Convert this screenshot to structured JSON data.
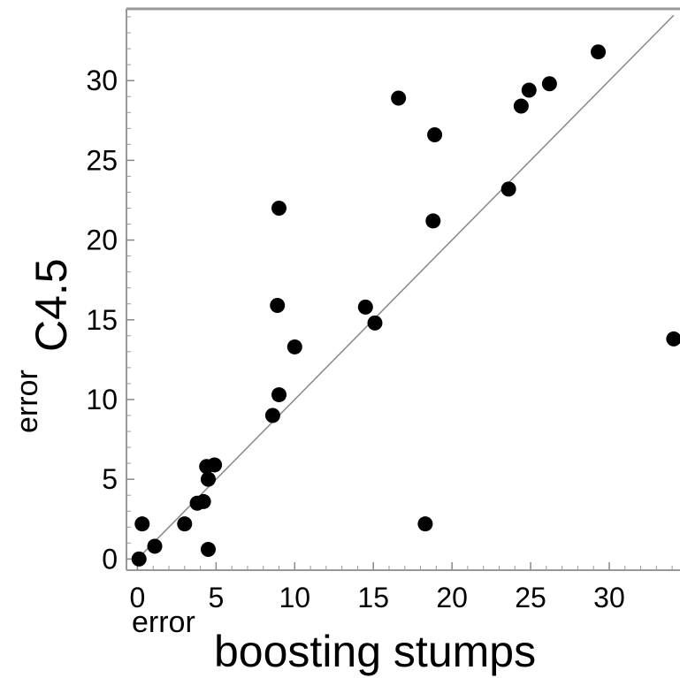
{
  "chart_data": {
    "type": "scatter",
    "title": "",
    "xlabel": {
      "prefix": "error",
      "main": "boosting stumps"
    },
    "ylabel": {
      "prefix": "error",
      "main": "C4.5"
    },
    "xlim": [
      -0.7,
      34.5
    ],
    "ylim": [
      -0.7,
      34.5
    ],
    "x_ticks": [
      0,
      5,
      10,
      15,
      20,
      25,
      30
    ],
    "y_ticks": [
      0,
      5,
      10,
      15,
      20,
      25,
      30
    ],
    "reference_line": "y = x",
    "grid": false,
    "legend": "none",
    "colors": {
      "points": "#000000",
      "frame": "#999999",
      "reference_line": "#888888"
    },
    "points": [
      {
        "x": 0.1,
        "y": 0.0
      },
      {
        "x": 0.3,
        "y": 2.2
      },
      {
        "x": 1.1,
        "y": 0.8
      },
      {
        "x": 3.0,
        "y": 2.2
      },
      {
        "x": 3.8,
        "y": 3.5
      },
      {
        "x": 4.2,
        "y": 3.6
      },
      {
        "x": 4.5,
        "y": 0.6
      },
      {
        "x": 4.5,
        "y": 5.0
      },
      {
        "x": 4.4,
        "y": 5.8
      },
      {
        "x": 4.9,
        "y": 5.9
      },
      {
        "x": 8.6,
        "y": 9.0
      },
      {
        "x": 9.0,
        "y": 10.3
      },
      {
        "x": 10.0,
        "y": 13.3
      },
      {
        "x": 8.9,
        "y": 15.9
      },
      {
        "x": 9.0,
        "y": 22.0
      },
      {
        "x": 14.5,
        "y": 15.8
      },
      {
        "x": 15.1,
        "y": 14.8
      },
      {
        "x": 16.6,
        "y": 28.9
      },
      {
        "x": 18.3,
        "y": 2.2
      },
      {
        "x": 18.8,
        "y": 21.2
      },
      {
        "x": 18.9,
        "y": 26.6
      },
      {
        "x": 23.6,
        "y": 23.2
      },
      {
        "x": 24.4,
        "y": 28.4
      },
      {
        "x": 24.9,
        "y": 29.4
      },
      {
        "x": 26.2,
        "y": 29.8
      },
      {
        "x": 29.3,
        "y": 31.8
      },
      {
        "x": 34.1,
        "y": 13.8
      }
    ]
  }
}
